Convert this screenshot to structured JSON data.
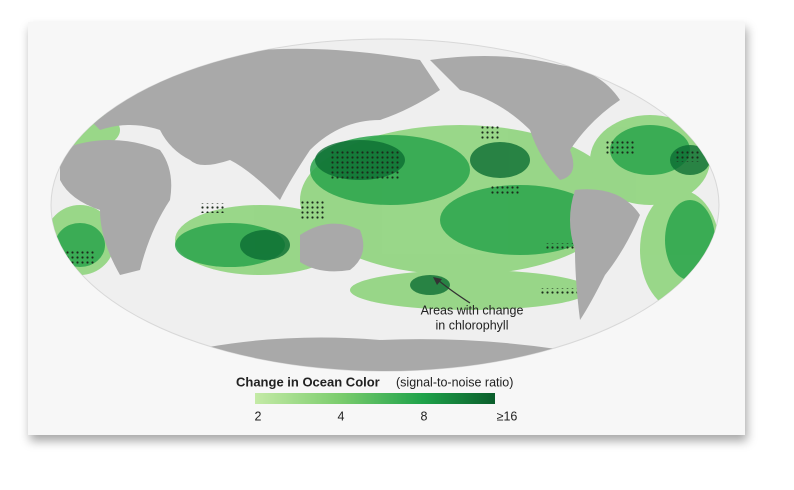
{
  "annotation": {
    "lines": [
      "Areas with change",
      "in chlorophyll"
    ]
  },
  "legend": {
    "title": "Change in Ocean Color",
    "subtitle": "(signal-to-noise ratio)",
    "ticks": [
      2,
      4,
      8,
      {
        "value": 16,
        "label": "≥16"
      }
    ]
  }
}
